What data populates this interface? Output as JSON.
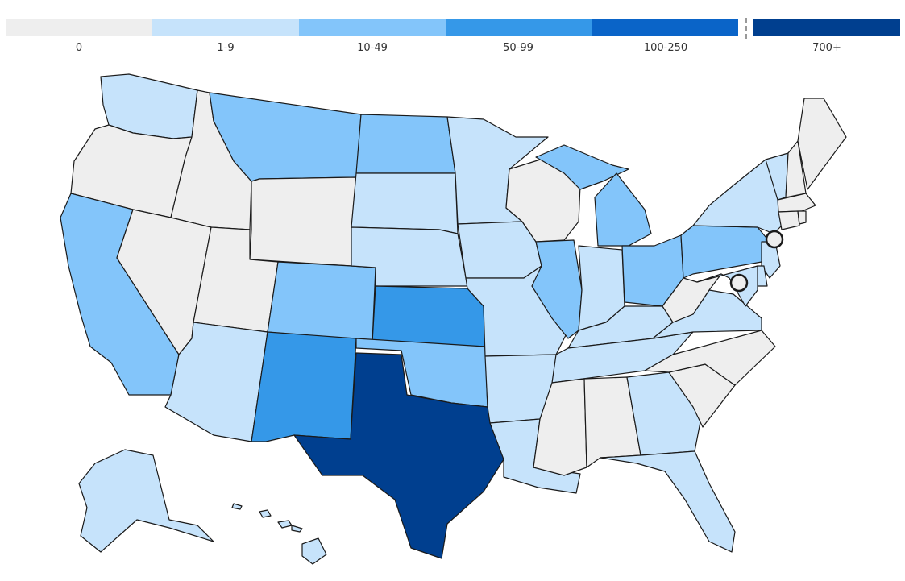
{
  "legend": {
    "bins": [
      {
        "label": "0",
        "color": "#eeeeee"
      },
      {
        "label": "1-9",
        "color": "#c6e3fb"
      },
      {
        "label": "10-49",
        "color": "#83c5fa"
      },
      {
        "label": "50-99",
        "color": "#3598e8"
      },
      {
        "label": "100-250",
        "color": "#0a64c8"
      },
      {
        "label": "700+",
        "color": "#003f8f"
      }
    ]
  },
  "states": [
    {
      "name": "washington",
      "bin": "1-9"
    },
    {
      "name": "oregon",
      "bin": "0"
    },
    {
      "name": "california",
      "bin": "10-49"
    },
    {
      "name": "idaho",
      "bin": "0"
    },
    {
      "name": "nevada",
      "bin": "0"
    },
    {
      "name": "montana",
      "bin": "10-49"
    },
    {
      "name": "wyoming",
      "bin": "0"
    },
    {
      "name": "utah",
      "bin": "0"
    },
    {
      "name": "arizona",
      "bin": "1-9"
    },
    {
      "name": "colorado",
      "bin": "10-49"
    },
    {
      "name": "new-mexico",
      "bin": "50-99"
    },
    {
      "name": "north-dakota",
      "bin": "10-49"
    },
    {
      "name": "south-dakota",
      "bin": "1-9"
    },
    {
      "name": "nebraska",
      "bin": "1-9"
    },
    {
      "name": "kansas",
      "bin": "50-99"
    },
    {
      "name": "oklahoma",
      "bin": "10-49"
    },
    {
      "name": "texas",
      "bin": "700+"
    },
    {
      "name": "minnesota",
      "bin": "1-9"
    },
    {
      "name": "iowa",
      "bin": "1-9"
    },
    {
      "name": "missouri",
      "bin": "1-9"
    },
    {
      "name": "arkansas",
      "bin": "1-9"
    },
    {
      "name": "louisiana",
      "bin": "1-9"
    },
    {
      "name": "wisconsin",
      "bin": "0"
    },
    {
      "name": "illinois",
      "bin": "10-49"
    },
    {
      "name": "michigan",
      "bin": "10-49"
    },
    {
      "name": "indiana",
      "bin": "1-9"
    },
    {
      "name": "ohio",
      "bin": "10-49"
    },
    {
      "name": "kentucky",
      "bin": "1-9"
    },
    {
      "name": "tennessee",
      "bin": "1-9"
    },
    {
      "name": "mississippi",
      "bin": "0"
    },
    {
      "name": "alabama",
      "bin": "0"
    },
    {
      "name": "georgia",
      "bin": "1-9"
    },
    {
      "name": "florida",
      "bin": "1-9"
    },
    {
      "name": "south-carolina",
      "bin": "0"
    },
    {
      "name": "north-carolina",
      "bin": "0"
    },
    {
      "name": "virginia",
      "bin": "1-9"
    },
    {
      "name": "west-virginia",
      "bin": "0"
    },
    {
      "name": "pennsylvania",
      "bin": "10-49"
    },
    {
      "name": "new-york",
      "bin": "1-9"
    },
    {
      "name": "vermont",
      "bin": "1-9"
    },
    {
      "name": "new-hampshire",
      "bin": "0"
    },
    {
      "name": "maine",
      "bin": "0"
    },
    {
      "name": "massachusetts",
      "bin": "0"
    },
    {
      "name": "connecticut",
      "bin": "0"
    },
    {
      "name": "rhode-island",
      "bin": "0"
    },
    {
      "name": "new-jersey",
      "bin": "1-9"
    },
    {
      "name": "delaware",
      "bin": "1-9"
    },
    {
      "name": "maryland",
      "bin": "1-9"
    },
    {
      "name": "alaska",
      "bin": "1-9"
    },
    {
      "name": "hawaii",
      "bin": "1-9"
    }
  ],
  "markers": [
    {
      "name": "new-york-city-marker",
      "bin": "0"
    },
    {
      "name": "washington-dc-marker",
      "bin": "0"
    }
  ]
}
